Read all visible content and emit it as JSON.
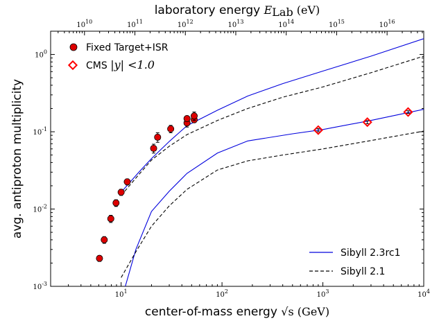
{
  "chart_data": {
    "type": "line",
    "x_axis": {
      "label_text": "center-of-mass energy ",
      "label_math": "√s (GeV)",
      "scale": "log",
      "range": [
        2,
        10000
      ],
      "tick_labels": [
        {
          "value": 10,
          "base": "10",
          "exp": "1"
        },
        {
          "value": 100,
          "base": "10",
          "exp": "2"
        },
        {
          "value": 1000,
          "base": "10",
          "exp": "3"
        },
        {
          "value": 10000,
          "base": "10",
          "exp": "4"
        }
      ]
    },
    "y_axis": {
      "label": "avg. antiproton multiplicity",
      "scale": "log",
      "range": [
        0.001,
        2
      ],
      "tick_labels": [
        {
          "value": 0.001,
          "base": "10",
          "exp": "-3"
        },
        {
          "value": 0.01,
          "base": "10",
          "exp": "-2"
        },
        {
          "value": 0.1,
          "base": "10",
          "exp": "-1"
        },
        {
          "value": 1,
          "base": "10",
          "exp": "0"
        }
      ]
    },
    "top_axis": {
      "label_text": "laboratory energy ",
      "label_math": "E",
      "label_sub": "Lab",
      "label_unit": " (eV)",
      "scale": "log",
      "tick_labels": [
        {
          "value": 10000000000.0,
          "base": "10",
          "exp": "10"
        },
        {
          "value": 100000000000.0,
          "base": "10",
          "exp": "11"
        },
        {
          "value": 1000000000000.0,
          "base": "10",
          "exp": "12"
        },
        {
          "value": 10000000000000.0,
          "base": "10",
          "exp": "13"
        },
        {
          "value": 100000000000000.0,
          "base": "10",
          "exp": "14"
        },
        {
          "value": 1000000000000000.0,
          "base": "10",
          "exp": "15"
        },
        {
          "value": 1e+16,
          "base": "10",
          "exp": "16"
        }
      ]
    },
    "series": [
      {
        "name": "Fixed Target+ISR",
        "kind": "marker",
        "marker": "circle",
        "color": "#dd0000",
        "points": [
          {
            "x": 6.1,
            "y": 0.0023,
            "err": 0.0002
          },
          {
            "x": 6.8,
            "y": 0.004,
            "err": 0.0004
          },
          {
            "x": 7.9,
            "y": 0.0075,
            "err": 0.0008
          },
          {
            "x": 8.9,
            "y": 0.012,
            "err": 0.0012
          },
          {
            "x": 10.0,
            "y": 0.0165,
            "err": 0.0015
          },
          {
            "x": 11.5,
            "y": 0.0225,
            "err": 0.002
          },
          {
            "x": 21.0,
            "y": 0.061,
            "err": 0.008
          },
          {
            "x": 23.0,
            "y": 0.085,
            "err": 0.012
          },
          {
            "x": 31.0,
            "y": 0.109,
            "err": 0.012
          },
          {
            "x": 45.0,
            "y": 0.13,
            "err": 0.015
          },
          {
            "x": 45.0,
            "y": 0.148,
            "err": 0.012
          },
          {
            "x": 53.0,
            "y": 0.143,
            "err": 0.012
          },
          {
            "x": 53.0,
            "y": 0.16,
            "err": 0.02
          }
        ]
      },
      {
        "name": "CMS |y|<1.0",
        "legend_text": "CMS ",
        "legend_math": "|y| <1.0",
        "kind": "marker",
        "marker": "diamond",
        "color": "#ff0000",
        "points": [
          {
            "x": 900,
            "y": 0.105,
            "err": 0.005
          },
          {
            "x": 2760,
            "y": 0.133,
            "err": 0.006
          },
          {
            "x": 7000,
            "y": 0.18,
            "err": 0.007
          }
        ]
      },
      {
        "name": "Sibyll 2.3rc1",
        "kind": "line",
        "style": "solid",
        "color": "#0000dd",
        "curves": [
          {
            "x": [
              9.8,
              15,
              20,
              30,
              45,
              90,
              180,
              400,
              1000,
              3000,
              10000
            ],
            "y": [
              0.016,
              0.03,
              0.045,
              0.075,
              0.12,
              0.19,
              0.29,
              0.42,
              0.61,
              0.95,
              1.6
            ]
          },
          {
            "x": [
              11,
              14,
              20,
              30,
              45,
              90,
              180,
              500,
              1000,
              3000,
              10000
            ],
            "y": [
              0.001,
              0.003,
              0.0093,
              0.017,
              0.029,
              0.053,
              0.076,
              0.094,
              0.107,
              0.14,
              0.195
            ]
          }
        ]
      },
      {
        "name": "Sibyll 2.1",
        "kind": "line",
        "style": "dashed",
        "color": "#000000",
        "curves": [
          {
            "x": [
              10,
              15,
              20,
              30,
              45,
              90,
              180,
              400,
              1000,
              3000,
              10000
            ],
            "y": [
              0.015,
              0.028,
              0.043,
              0.065,
              0.092,
              0.14,
              0.2,
              0.28,
              0.38,
              0.58,
              0.95
            ]
          },
          {
            "x": [
              10,
              14,
              20,
              30,
              45,
              90,
              180,
              400,
              1000,
              3000,
              10000
            ],
            "y": [
              0.0013,
              0.0028,
              0.006,
              0.011,
              0.018,
              0.032,
              0.042,
              0.05,
              0.06,
              0.077,
              0.102
            ]
          }
        ]
      }
    ],
    "legends": [
      {
        "position": "top-left",
        "entries": [
          "Fixed Target+ISR",
          "CMS |y|<1.0"
        ]
      },
      {
        "position": "bottom-right",
        "entries": [
          "Sibyll 2.3rc1",
          "Sibyll 2.1"
        ]
      }
    ],
    "grid": false
  }
}
